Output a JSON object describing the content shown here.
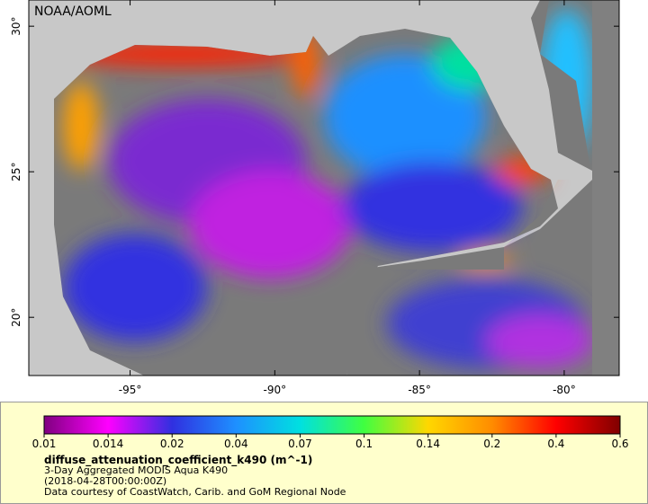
{
  "map": {
    "watermark": "NOAA/AOML",
    "xlim": [
      -98.5,
      -78.1
    ],
    "ylim": [
      18.0,
      30.9
    ],
    "xticks": [
      {
        "value": -95,
        "label": "-95°"
      },
      {
        "value": -90,
        "label": "-90°"
      },
      {
        "value": -85,
        "label": "-85°"
      },
      {
        "value": -80,
        "label": "-80°"
      }
    ],
    "yticks": [
      {
        "value": 20,
        "label": "20°"
      },
      {
        "value": 25,
        "label": "25°"
      },
      {
        "value": 30,
        "label": "30°"
      }
    ]
  },
  "legend": {
    "ticks": [
      0.01,
      0.014,
      0.02,
      0.04,
      0.07,
      0.1,
      0.14,
      0.2,
      0.4,
      0.6
    ],
    "colors": [
      "#800080",
      "#ff00ff",
      "#3030e0",
      "#1e90ff",
      "#00e0e0",
      "#40ff40",
      "#ffd700",
      "#ff8c00",
      "#ff0000",
      "#800000"
    ],
    "title": "diffuse_attenuation_coefficient_k490 (m^-1)",
    "lines": [
      "3-Day Aggregated MODIS Aqua K490",
      "(2018-04-28T00:00:00Z)",
      "Data courtesy of CoastWatch, Carib. and GoM Regional Node"
    ]
  }
}
